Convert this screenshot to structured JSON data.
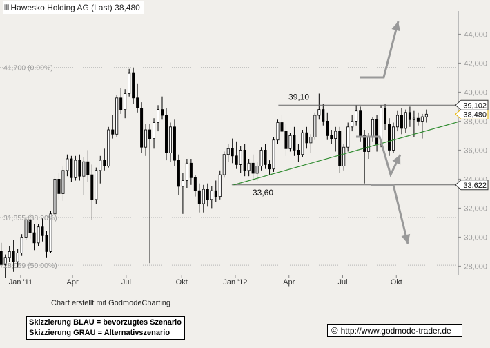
{
  "chart_title": "Hawesko Holding AG (Last) 38,480",
  "credit": "Chart erstellt mit GodmodeCharting",
  "legend": {
    "line1": "Skizzierung BLAU = bevorzugtes Szenario",
    "line2": "Skizzierung GRAU = Alternativszenario"
  },
  "copyright": "http://www.godmode-trader.de",
  "colors": {
    "background": "#f1efeb",
    "candle": "#000000",
    "trendline": "#2e8b2e",
    "horizontal_line": "#666666",
    "arrow": "#999999",
    "last_price_tag": "#e8b400"
  },
  "chart_data": {
    "type": "candlestick",
    "ylim": [
      27.4,
      45.4
    ],
    "y_ticks": [
      "28,000",
      "30,000",
      "32,000",
      "34,000",
      "36,000",
      "38,000",
      "40,000",
      "42,000",
      "44,000"
    ],
    "y_tick_values": [
      28,
      30,
      32,
      34,
      36,
      38,
      40,
      42,
      44
    ],
    "x_ticks": [
      {
        "label": "Jan '11",
        "date": "2011-01-03"
      },
      {
        "label": "Apr",
        "date": "2011-04-01"
      },
      {
        "label": "Jul",
        "date": "2011-07-01"
      },
      {
        "label": "Okt",
        "date": "2011-10-03"
      },
      {
        "label": "Jan '12",
        "date": "2012-01-02"
      },
      {
        "label": "Apr",
        "date": "2012-04-02"
      },
      {
        "label": "Jul",
        "date": "2012-07-02"
      },
      {
        "label": "Okt",
        "date": "2012-10-01"
      }
    ],
    "x_range": [
      "2010-11-29",
      "2013-01-14"
    ],
    "grid": false,
    "fib_levels": [
      {
        "label": "41,700 (0.00%)",
        "value": 41.7
      },
      {
        "label": "31,355 (38.20%)",
        "value": 31.355
      },
      {
        "label": "28,059 (50.00%)",
        "value": 28.059
      }
    ],
    "horizontal_lines": [
      {
        "label": "39,10",
        "value": 39.1,
        "start": "2012-03-15",
        "tag": "39,102"
      },
      {
        "label": "33,60",
        "value": 33.6,
        "start": "2011-12-27",
        "tag": "33,622"
      }
    ],
    "trendline": {
      "start": {
        "date": "2011-12-30",
        "value": 33.6
      },
      "end": {
        "date": "2013-01-14",
        "value": 37.95
      }
    },
    "last_price": {
      "value": 38.48,
      "label": "38,480"
    },
    "weekly": [
      [
        "2010-12-01",
        29.0,
        29.6,
        27.9,
        28.1
      ],
      [
        "2010-12-08",
        28.1,
        28.8,
        27.2,
        28.6
      ],
      [
        "2010-12-15",
        28.6,
        29.4,
        28.3,
        29.0
      ],
      [
        "2010-12-22",
        29.0,
        29.8,
        27.6,
        28.3
      ],
      [
        "2010-12-29",
        28.3,
        29.2,
        27.9,
        28.9
      ],
      [
        "2011-01-05",
        28.9,
        30.2,
        28.7,
        30.0
      ],
      [
        "2011-01-12",
        30.0,
        31.4,
        29.8,
        31.2
      ],
      [
        "2011-01-19",
        31.2,
        31.6,
        29.9,
        30.3
      ],
      [
        "2011-01-26",
        30.3,
        30.9,
        29.1,
        29.6
      ],
      [
        "2011-02-02",
        29.6,
        30.9,
        29.4,
        30.7
      ],
      [
        "2011-02-09",
        30.7,
        31.3,
        29.7,
        30.1
      ],
      [
        "2011-02-16",
        30.1,
        30.4,
        28.6,
        29.0
      ],
      [
        "2011-02-23",
        29.0,
        31.8,
        28.9,
        31.6
      ],
      [
        "2011-03-02",
        31.6,
        34.2,
        31.4,
        34.0
      ],
      [
        "2011-03-09",
        34.0,
        34.4,
        32.6,
        33.0
      ],
      [
        "2011-03-16",
        33.0,
        34.9,
        32.5,
        34.6
      ],
      [
        "2011-03-23",
        34.6,
        35.7,
        34.2,
        35.4
      ],
      [
        "2011-03-30",
        35.4,
        35.6,
        33.8,
        34.1
      ],
      [
        "2011-04-06",
        34.1,
        35.6,
        33.9,
        35.3
      ],
      [
        "2011-04-13",
        35.3,
        35.7,
        33.9,
        34.2
      ],
      [
        "2011-04-20",
        34.2,
        35.5,
        32.9,
        35.2
      ],
      [
        "2011-04-27",
        35.2,
        36.0,
        33.8,
        34.3
      ],
      [
        "2011-05-04",
        34.3,
        35.0,
        31.2,
        32.6
      ],
      [
        "2011-05-11",
        32.6,
        34.8,
        32.3,
        34.6
      ],
      [
        "2011-05-18",
        34.6,
        35.6,
        33.7,
        35.3
      ],
      [
        "2011-05-25",
        35.3,
        36.1,
        34.6,
        34.9
      ],
      [
        "2011-06-01",
        34.9,
        37.6,
        34.8,
        37.4
      ],
      [
        "2011-06-08",
        37.4,
        38.4,
        36.8,
        37.1
      ],
      [
        "2011-06-15",
        37.1,
        39.8,
        36.9,
        39.6
      ],
      [
        "2011-06-22",
        39.6,
        40.3,
        38.5,
        38.8
      ],
      [
        "2011-06-29",
        38.8,
        40.2,
        38.2,
        39.9
      ],
      [
        "2011-07-06",
        39.9,
        41.6,
        39.7,
        41.3
      ],
      [
        "2011-07-13",
        41.3,
        41.7,
        39.2,
        39.6
      ],
      [
        "2011-07-20",
        39.6,
        40.6,
        38.6,
        38.9
      ],
      [
        "2011-07-27",
        38.9,
        39.3,
        35.8,
        36.2
      ],
      [
        "2011-08-03",
        36.2,
        37.8,
        35.6,
        37.4
      ],
      [
        "2011-08-10",
        37.4,
        37.8,
        28.2,
        36.8
      ],
      [
        "2011-08-17",
        36.8,
        38.2,
        36.1,
        37.9
      ],
      [
        "2011-08-24",
        37.9,
        39.1,
        37.3,
        38.8
      ],
      [
        "2011-08-31",
        38.8,
        39.7,
        38.1,
        38.4
      ],
      [
        "2011-09-07",
        38.4,
        38.9,
        35.3,
        35.8
      ],
      [
        "2011-09-14",
        35.8,
        37.9,
        35.2,
        37.6
      ],
      [
        "2011-09-21",
        37.6,
        38.1,
        34.9,
        35.3
      ],
      [
        "2011-09-28",
        35.3,
        35.7,
        32.9,
        33.5
      ],
      [
        "2011-10-05",
        33.5,
        34.4,
        31.6,
        33.9
      ],
      [
        "2011-10-12",
        33.9,
        35.4,
        33.4,
        35.1
      ],
      [
        "2011-10-19",
        35.1,
        35.4,
        33.6,
        34.1
      ],
      [
        "2011-10-26",
        34.1,
        34.3,
        32.8,
        33.2
      ],
      [
        "2011-11-02",
        33.2,
        33.7,
        31.7,
        32.3
      ],
      [
        "2011-11-09",
        32.3,
        33.6,
        31.7,
        33.3
      ],
      [
        "2011-11-16",
        33.3,
        33.7,
        32.1,
        32.6
      ],
      [
        "2011-11-23",
        32.6,
        33.5,
        32.0,
        33.2
      ],
      [
        "2011-11-30",
        33.2,
        33.9,
        32.4,
        32.8
      ],
      [
        "2011-12-07",
        32.8,
        34.6,
        32.6,
        34.3
      ],
      [
        "2011-12-14",
        34.3,
        35.9,
        34.1,
        35.7
      ],
      [
        "2011-12-21",
        35.7,
        36.4,
        35.2,
        36.1
      ],
      [
        "2011-12-28",
        36.1,
        36.8,
        35.1,
        35.6
      ],
      [
        "2012-01-04",
        35.6,
        36.6,
        34.7,
        35.0
      ],
      [
        "2012-01-11",
        35.0,
        36.3,
        34.4,
        36.0
      ],
      [
        "2012-01-18",
        36.0,
        36.4,
        34.2,
        34.6
      ],
      [
        "2012-01-25",
        34.6,
        35.4,
        34.2,
        35.1
      ],
      [
        "2012-02-01",
        35.1,
        35.7,
        33.9,
        34.4
      ],
      [
        "2012-02-08",
        34.4,
        35.2,
        33.9,
        34.9
      ],
      [
        "2012-02-15",
        34.9,
        36.2,
        34.6,
        36.0
      ],
      [
        "2012-02-22",
        36.0,
        36.4,
        34.7,
        35.0
      ],
      [
        "2012-02-29",
        35.0,
        35.3,
        34.3,
        34.7
      ],
      [
        "2012-03-07",
        34.7,
        36.9,
        34.5,
        36.7
      ],
      [
        "2012-03-14",
        36.7,
        38.1,
        36.4,
        37.9
      ],
      [
        "2012-03-21",
        37.9,
        38.4,
        36.9,
        37.3
      ],
      [
        "2012-03-28",
        37.3,
        37.8,
        35.6,
        36.1
      ],
      [
        "2012-04-04",
        36.1,
        37.2,
        35.9,
        37.0
      ],
      [
        "2012-04-11",
        37.0,
        37.6,
        35.6,
        36.0
      ],
      [
        "2012-04-18",
        36.0,
        36.4,
        35.2,
        35.7
      ],
      [
        "2012-04-25",
        35.7,
        37.4,
        35.5,
        37.2
      ],
      [
        "2012-05-02",
        37.2,
        37.6,
        36.1,
        36.5
      ],
      [
        "2012-05-09",
        36.5,
        37.1,
        35.8,
        36.9
      ],
      [
        "2012-05-16",
        36.9,
        38.6,
        36.7,
        38.4
      ],
      [
        "2012-05-23",
        38.4,
        39.9,
        38.1,
        38.8
      ],
      [
        "2012-05-30",
        38.8,
        39.2,
        37.7,
        38.0
      ],
      [
        "2012-06-06",
        38.0,
        38.6,
        36.7,
        37.0
      ],
      [
        "2012-06-13",
        37.0,
        37.4,
        36.4,
        36.8
      ],
      [
        "2012-06-20",
        36.8,
        37.6,
        35.9,
        37.3
      ],
      [
        "2012-06-27",
        37.3,
        37.6,
        34.4,
        34.9
      ],
      [
        "2012-07-04",
        34.9,
        36.4,
        34.6,
        36.2
      ],
      [
        "2012-07-11",
        36.2,
        37.9,
        35.9,
        37.6
      ],
      [
        "2012-07-18",
        37.6,
        38.4,
        37.3,
        38.0
      ],
      [
        "2012-07-25",
        38.0,
        39.1,
        37.7,
        38.7
      ],
      [
        "2012-08-01",
        38.7,
        39.0,
        36.6,
        37.0
      ],
      [
        "2012-08-08",
        37.0,
        37.4,
        33.7,
        35.9
      ],
      [
        "2012-08-15",
        35.9,
        37.2,
        35.4,
        36.9
      ],
      [
        "2012-08-22",
        36.9,
        38.3,
        36.6,
        38.1
      ],
      [
        "2012-08-29",
        38.1,
        38.4,
        35.9,
        36.4
      ],
      [
        "2012-09-05",
        36.4,
        39.1,
        36.2,
        38.9
      ],
      [
        "2012-09-12",
        38.9,
        39.2,
        37.4,
        37.8
      ],
      [
        "2012-09-19",
        37.8,
        38.2,
        35.6,
        36.0
      ],
      [
        "2012-09-26",
        36.0,
        37.9,
        35.8,
        37.6
      ],
      [
        "2012-10-03",
        37.6,
        38.7,
        37.3,
        38.4
      ],
      [
        "2012-10-10",
        38.4,
        38.9,
        37.1,
        37.5
      ],
      [
        "2012-10-17",
        37.5,
        38.8,
        37.2,
        38.6
      ],
      [
        "2012-10-24",
        38.6,
        39.0,
        37.6,
        38.1
      ],
      [
        "2012-10-31",
        38.1,
        38.7,
        36.9,
        38.2
      ],
      [
        "2012-11-07",
        38.2,
        38.6,
        37.7,
        38.0
      ],
      [
        "2012-11-14",
        38.0,
        38.5,
        36.8,
        38.3
      ],
      [
        "2012-11-21",
        38.3,
        38.8,
        37.9,
        38.48
      ]
    ]
  }
}
